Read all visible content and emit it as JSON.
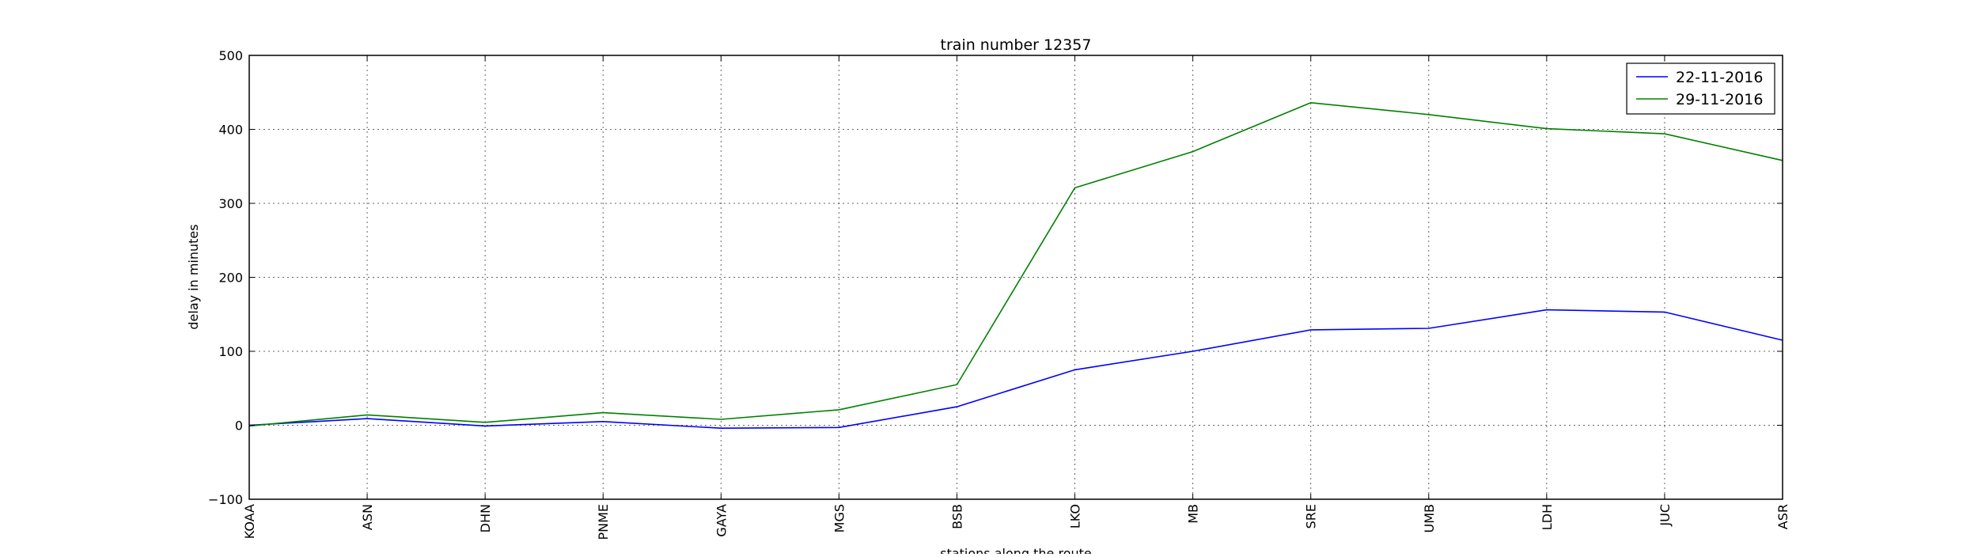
{
  "chart_data": {
    "type": "line",
    "title": "train number 12357",
    "xlabel": "stations along the route",
    "ylabel": "delay in minutes",
    "categories": [
      "KOAA",
      "ASN",
      "DHN",
      "PNME",
      "GAYA",
      "MGS",
      "BSB",
      "LKO",
      "MB",
      "SRE",
      "UMB",
      "LDH",
      "JUC",
      "ASR"
    ],
    "ylim": [
      -100,
      500
    ],
    "yticks": [
      -100,
      0,
      100,
      200,
      300,
      400,
      500
    ],
    "grid": true,
    "legend_position": "top-right",
    "series": [
      {
        "name": "22-11-2016",
        "color": "#0000ff",
        "values": [
          0,
          9,
          -1,
          5,
          -4,
          -3,
          25,
          75,
          100,
          129,
          131,
          156,
          153,
          115
        ]
      },
      {
        "name": "29-11-2016",
        "color": "#008000",
        "values": [
          -1,
          14,
          4,
          17,
          8,
          21,
          55,
          321,
          370,
          436,
          420,
          401,
          394,
          358
        ]
      }
    ]
  }
}
